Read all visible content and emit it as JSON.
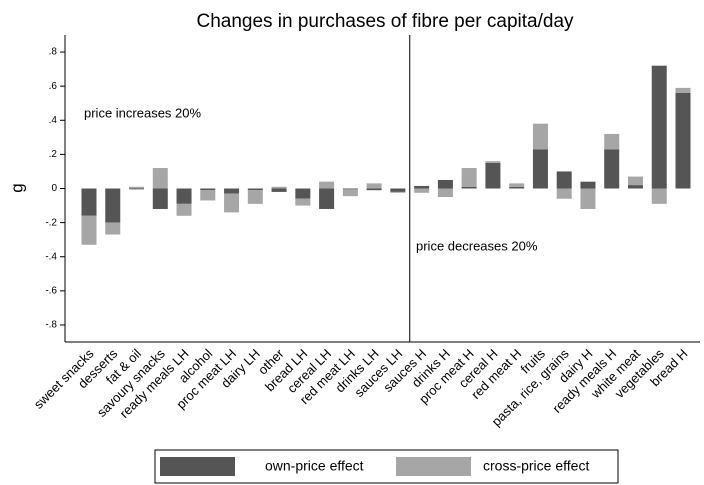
{
  "chart_data": {
    "type": "bar",
    "stacked": true,
    "title": "Changes in purchases of fibre per capita/day",
    "y_label": "g",
    "annotations": [
      "price increases 20%",
      "price decreases 20%"
    ],
    "categories": [
      "sweet snacks",
      "desserts",
      "fat & oil",
      "savoury snacks",
      "ready meals LH",
      "alcohol",
      "proc meat LH",
      "dairy LH",
      "other",
      "bread LH",
      "cereal LH",
      "red meat LH",
      "drinks LH",
      "sauces LH",
      "sauces H",
      "drinks H",
      "proc meat H",
      "cereal H",
      "red meat H",
      "fruits",
      "pasta, rice, grains",
      "dairy H",
      "ready meals H",
      "white meat",
      "vegetables",
      "bread H"
    ],
    "series": [
      {
        "name": "own-price effect",
        "color": "#555555",
        "values": [
          -0.16,
          -0.2,
          -0.005,
          -0.12,
          -0.09,
          -0.01,
          -0.03,
          -0.01,
          -0.02,
          -0.06,
          -0.12,
          -0.005,
          -0.01,
          -0.02,
          0.015,
          0.05,
          0.01,
          0.15,
          0.01,
          0.23,
          0.1,
          0.04,
          0.23,
          0.02,
          0.72,
          0.56
        ]
      },
      {
        "name": "cross-price effect",
        "color": "#a6a6a6",
        "values": [
          -0.17,
          -0.07,
          0.01,
          0.12,
          -0.07,
          -0.06,
          -0.11,
          -0.08,
          0.01,
          -0.04,
          0.04,
          -0.04,
          0.03,
          -0.005,
          -0.025,
          -0.05,
          0.11,
          0.01,
          0.02,
          0.15,
          -0.06,
          -0.12,
          0.09,
          0.05,
          -0.09,
          0.03
        ]
      }
    ],
    "ylim": [
      -0.9,
      0.9
    ],
    "yticks": [
      {
        "value": -0.8,
        "label": "-.8"
      },
      {
        "value": -0.6,
        "label": "-.6"
      },
      {
        "value": -0.4,
        "label": "-.4"
      },
      {
        "value": -0.2,
        "label": "-.2"
      },
      0,
      {
        "value": 0.2,
        "label": ".2"
      },
      {
        "value": 0.4,
        "label": ".4"
      },
      {
        "value": 0.6,
        "label": ".6"
      },
      {
        "value": 0.8,
        "label": ".8"
      }
    ],
    "grid": false
  }
}
